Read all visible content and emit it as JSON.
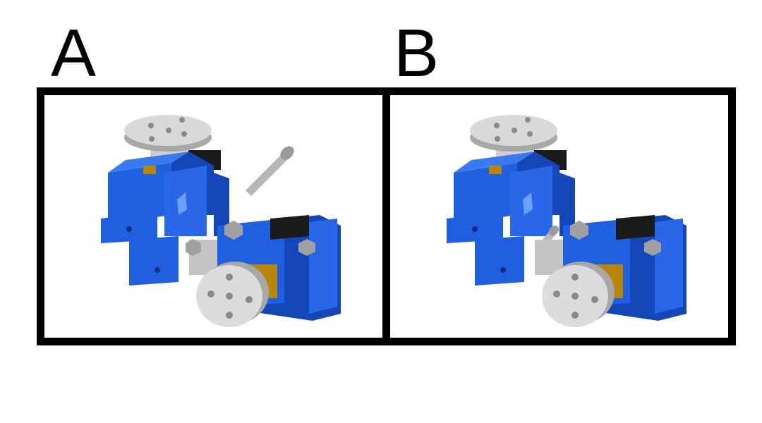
{
  "panels": [
    {
      "label": "A",
      "variant": "bolt-extended"
    },
    {
      "label": "B",
      "variant": "bolt-inserted"
    }
  ],
  "colors": {
    "frame": "#000000",
    "body_blue": "#1f5fe0",
    "body_blue_dark": "#1546b8",
    "body_blue_light": "#3a7af0",
    "metal": "#c8c8c8",
    "metal_dark": "#8a8a8a",
    "brass": "#b8860b",
    "motor_black": "#1a1a1a"
  }
}
